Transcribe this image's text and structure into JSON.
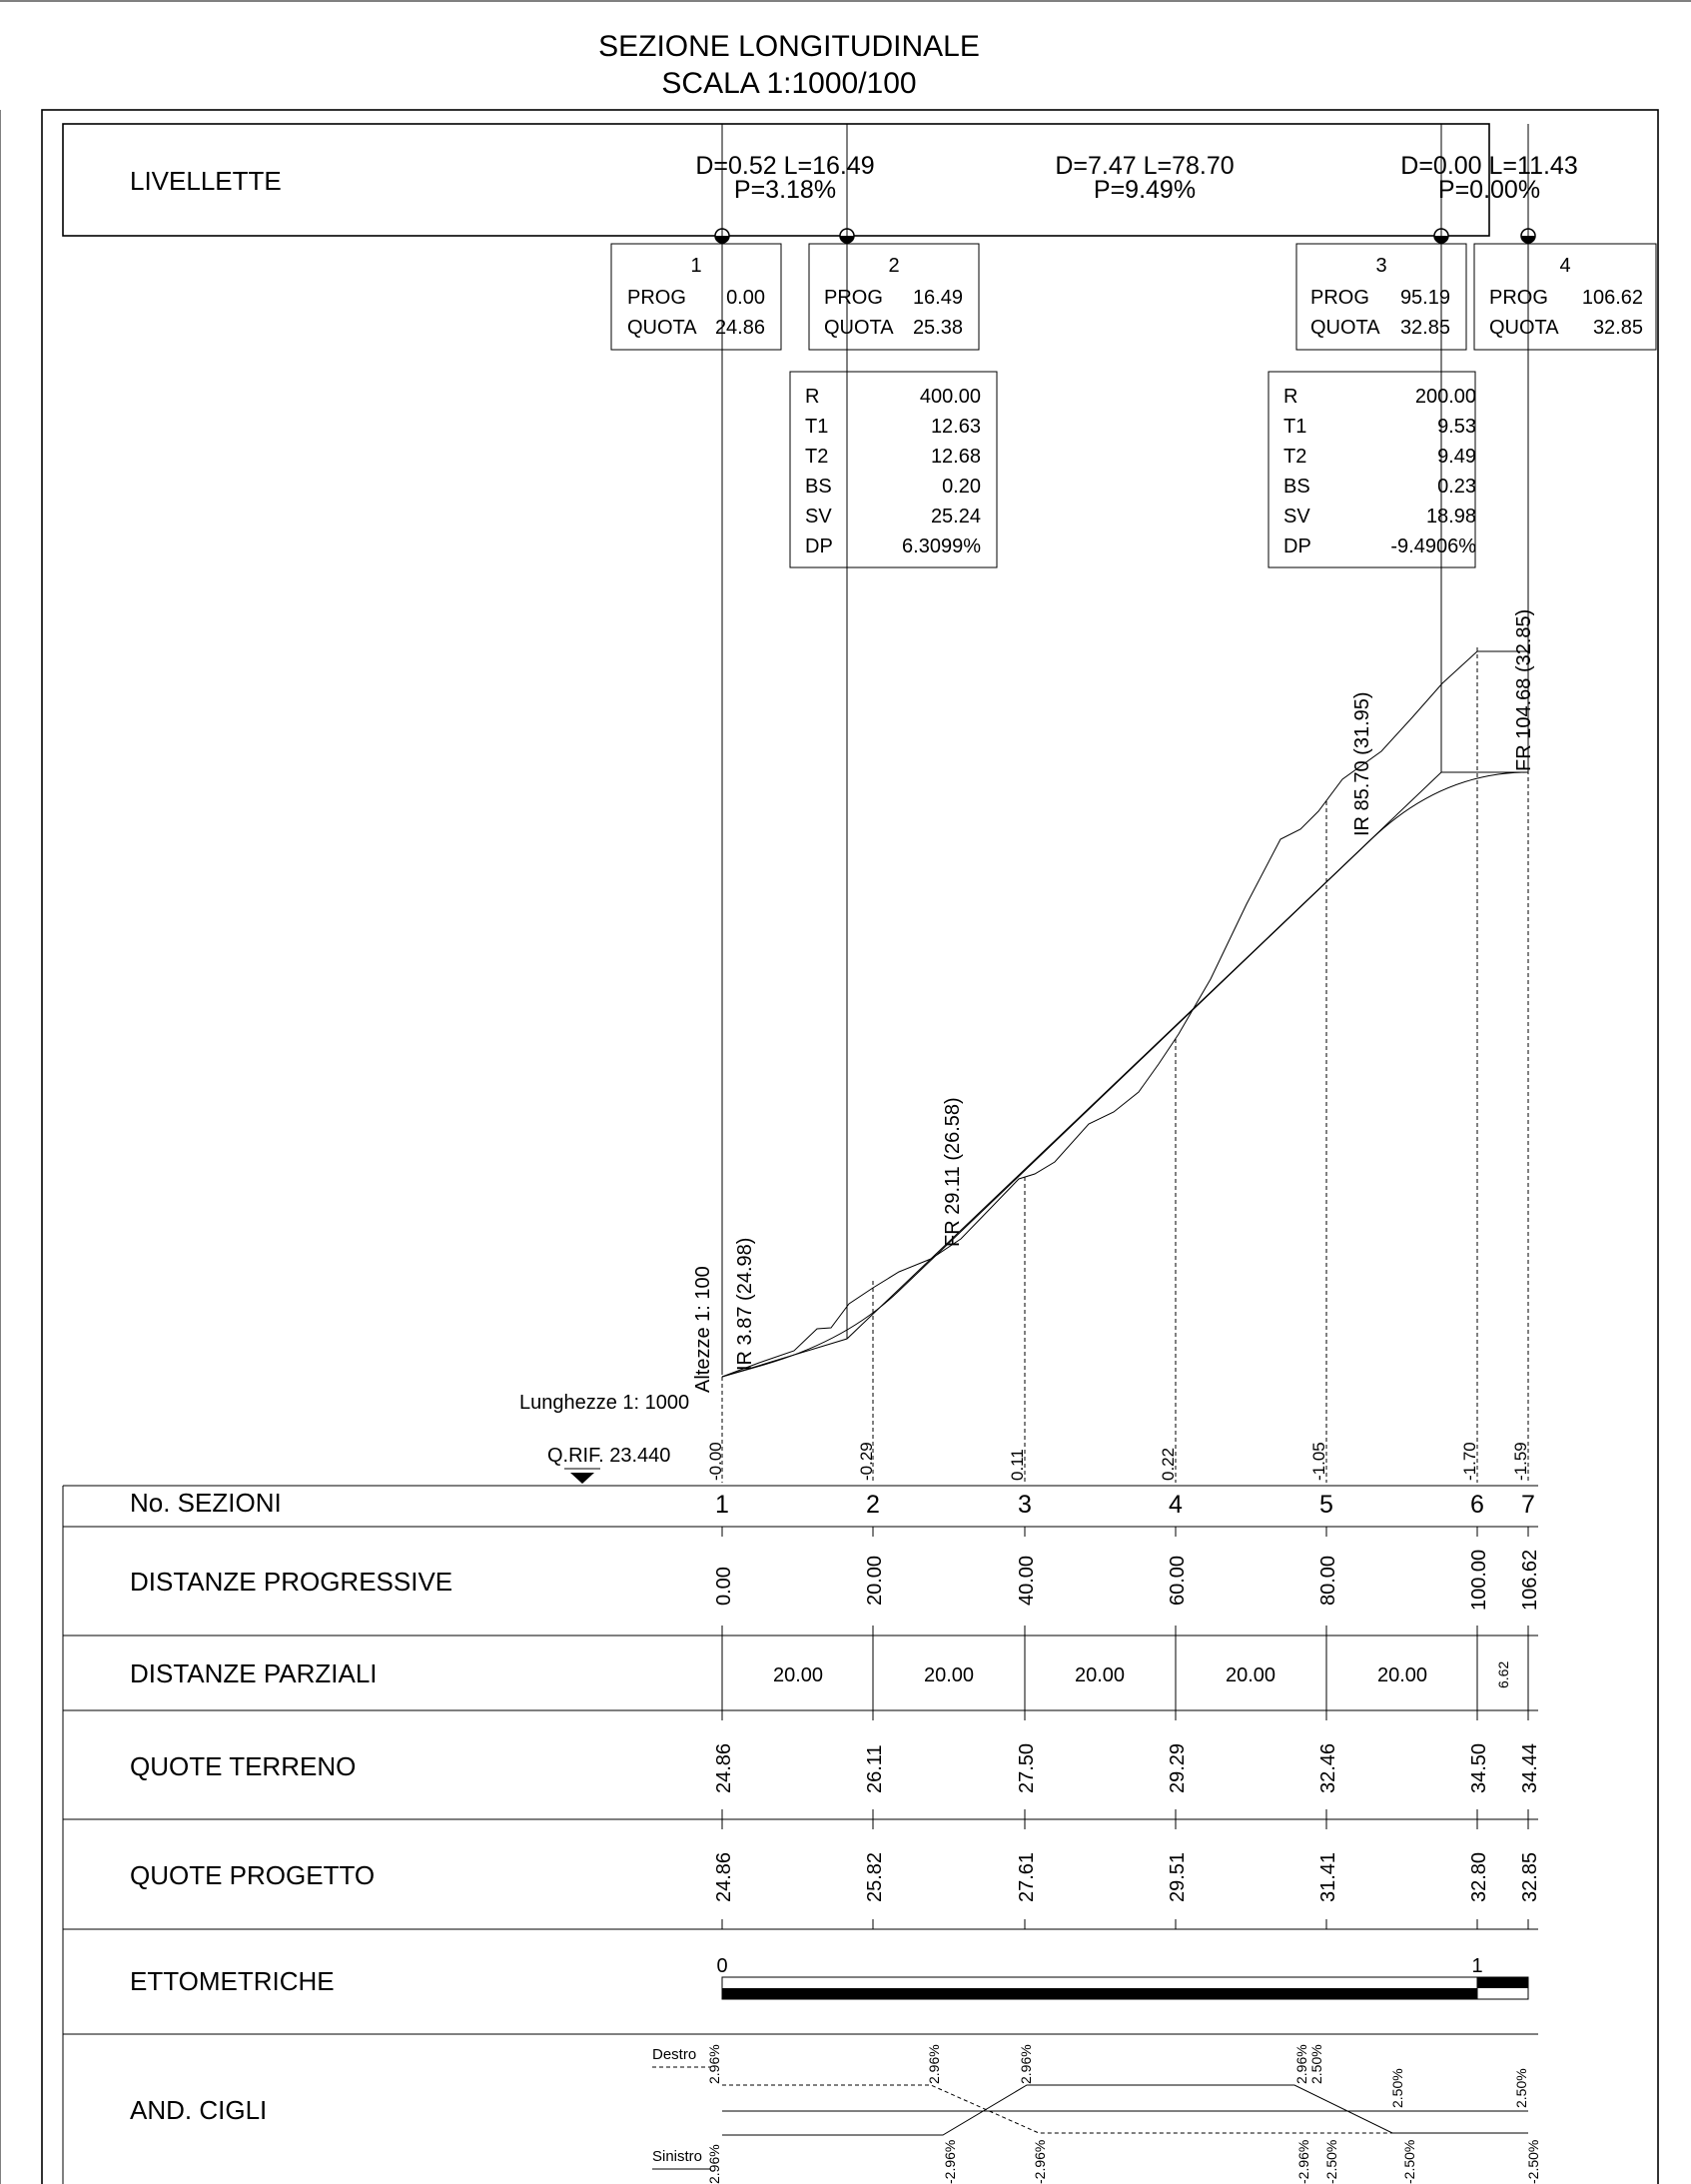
{
  "title": {
    "line1": "SEZIONE LONGITUDINALE",
    "line2": "SCALA 1:1000/100"
  },
  "livellette": {
    "label": "LIVELLETTE",
    "segments": [
      {
        "d_l": "D=0.52 L=16.49",
        "p": "P=3.18%"
      },
      {
        "d_l": "D=7.47 L=78.70",
        "p": "P=9.49%"
      },
      {
        "d_l": "D=0.00 L=11.43",
        "p": "P=0.00%"
      }
    ]
  },
  "vertices": [
    {
      "num": "1",
      "prog_label": "PROG",
      "prog": "0.00",
      "quota_label": "QUOTA",
      "quota": "24.86"
    },
    {
      "num": "2",
      "prog_label": "PROG",
      "prog": "16.49",
      "quota_label": "QUOTA",
      "quota": "25.38"
    },
    {
      "num": "3",
      "prog_label": "PROG",
      "prog": "95.19",
      "quota_label": "QUOTA",
      "quota": "32.85"
    },
    {
      "num": "4",
      "prog_label": "PROG",
      "prog": "106.62",
      "quota_label": "QUOTA",
      "quota": "32.85"
    }
  ],
  "curves": [
    {
      "rows": [
        [
          "R",
          "400.00"
        ],
        [
          "T1",
          "12.63"
        ],
        [
          "T2",
          "12.68"
        ],
        [
          "BS",
          "0.20"
        ],
        [
          "SV",
          "25.24"
        ],
        [
          "DP",
          "6.3099%"
        ]
      ]
    },
    {
      "rows": [
        [
          "R",
          "200.00"
        ],
        [
          "T1",
          "9.53"
        ],
        [
          "T2",
          "9.49"
        ],
        [
          "BS",
          "0.23"
        ],
        [
          "SV",
          "18.98"
        ],
        [
          "DP",
          "-9.4906%"
        ]
      ]
    }
  ],
  "profile_labels": {
    "ir1": "IR  3.87  (24.98)",
    "fr1": "FR  29.11  (26.58)",
    "ir2": "IR  85.70  (31.95)",
    "fr2": "FR  104.68  (32.85)",
    "altezze": "Altezze 1: 100",
    "lunghezze": "Lunghezze 1: 1000",
    "qrif": "Q.RIF. 23.440"
  },
  "differences": [
    "-0.00",
    "-0.29",
    "0.11",
    "0.22",
    "-1.05",
    "-1.70",
    "-1.59"
  ],
  "table": {
    "headers": {
      "sezioni": "No. SEZIONI",
      "progressive": "DISTANZE PROGRESSIVE",
      "parziali": "DISTANZE PARZIALI",
      "terreno": "QUOTE TERRENO",
      "progetto": "QUOTE PROGETTO",
      "ettometriche": "ETTOMETRICHE",
      "cigli": "AND. CIGLI"
    },
    "sezioni": [
      "1",
      "2",
      "3",
      "4",
      "5",
      "6",
      "7"
    ],
    "progressive": [
      "0.00",
      "20.00",
      "40.00",
      "60.00",
      "80.00",
      "100.00",
      "106.62"
    ],
    "parziali": [
      "20.00",
      "20.00",
      "20.00",
      "20.00",
      "20.00",
      "6.62"
    ],
    "terreno": [
      "24.86",
      "26.11",
      "27.50",
      "29.29",
      "32.46",
      "34.50",
      "34.44"
    ],
    "progetto": [
      "24.86",
      "25.82",
      "27.61",
      "29.51",
      "31.41",
      "32.80",
      "32.85"
    ],
    "ettometriche": [
      "0",
      "1"
    ],
    "cigli_destro_label": "Destro",
    "cigli_sinistro_label": "Sinistro",
    "cigli_destro": [
      "2.96%",
      "2.96%",
      "2.96%",
      "2.96%",
      "2.50%",
      "2.50%",
      "2.50%"
    ],
    "cigli_sinistro": [
      "2.96%",
      "-2.96%",
      "-2.96%",
      "-2.96%",
      "-2.50%",
      "-2.50%",
      "-2.50%"
    ]
  }
}
